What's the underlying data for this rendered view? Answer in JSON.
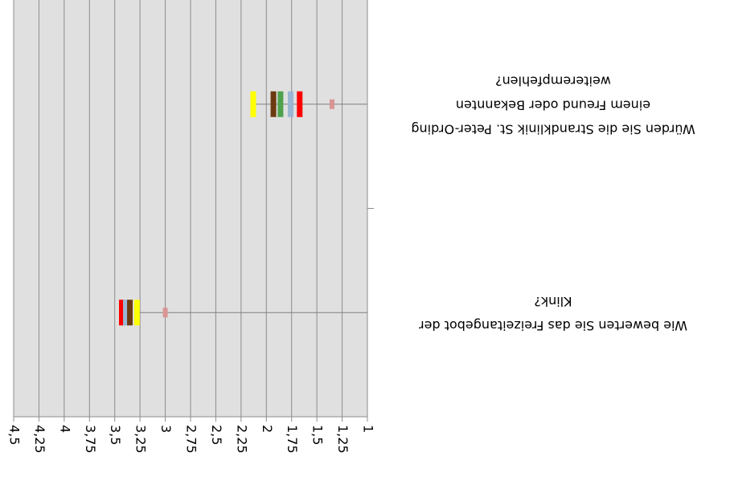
{
  "chart_data": {
    "type": "dot",
    "categories": [
      [
        "Wie bewerten Sie das Freizeitangebot der",
        "Klink?"
      ],
      [
        "Würden Sie die Strandklinik St. Peter-Ording",
        "einem Freund oder Bekannten",
        "weiterempfehlen?"
      ]
    ],
    "series": [
      {
        "color": "#ff0000",
        "values": [
          3.43,
          1.67
        ]
      },
      {
        "color": "#9bb7d4",
        "values": [
          3.39,
          1.76
        ]
      },
      {
        "color": "#6b3a10",
        "values": [
          3.35,
          1.93
        ]
      },
      {
        "color": "#ffff00",
        "values": [
          3.28,
          2.13
        ]
      },
      {
        "color": "#d99594",
        "values": [
          3.0,
          1.35
        ]
      },
      {
        "color": "#4ea24e",
        "values": [
          null,
          1.86
        ]
      }
    ],
    "xlim": [
      1,
      4.5
    ],
    "xticks": [
      1,
      {
        "value": 1.25,
        "label": "1,25"
      },
      {
        "value": 1.5,
        "label": "1,5"
      },
      {
        "value": 1.75,
        "label": "1,75"
      },
      2,
      {
        "value": 2.25,
        "label": "2,25"
      },
      {
        "value": 2.5,
        "label": "2,5"
      },
      {
        "value": 2.75,
        "label": "2,75"
      },
      3,
      {
        "value": 3.25,
        "label": "3,25"
      },
      {
        "value": 3.5,
        "label": "3,5"
      },
      {
        "value": 3.75,
        "label": "3,75"
      },
      4,
      {
        "value": 4.25,
        "label": "4,25"
      },
      {
        "value": 4.5,
        "label": "4,5"
      }
    ],
    "grid": true,
    "rotated": 180
  }
}
